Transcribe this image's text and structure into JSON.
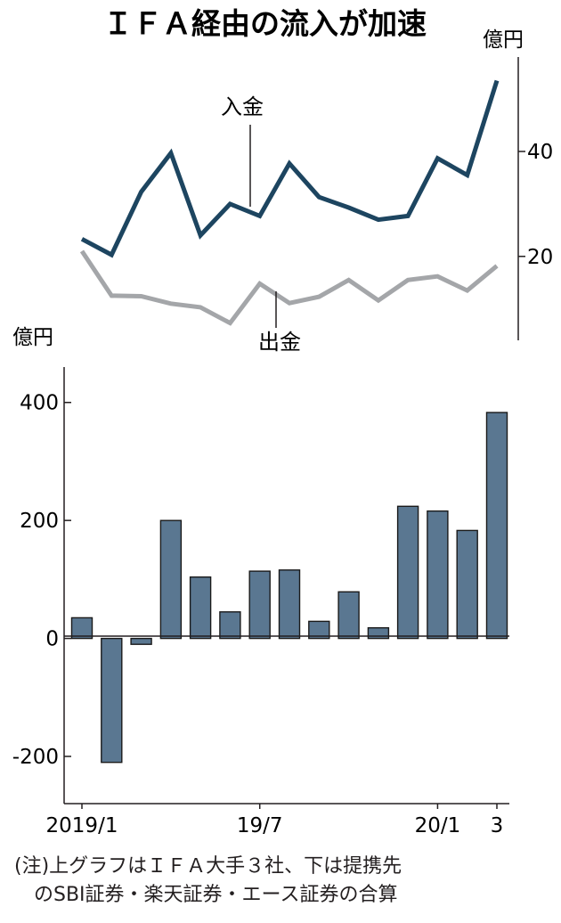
{
  "title": "ＩＦＡ経由の流入が加速",
  "note_line1": "(注)上グラフはＩＦＡ大手３社、下は提携先",
  "note_line2": "のSBI証券・楽天証券・エース証券の合算",
  "chart_data": [
    {
      "type": "line",
      "unit": "億円",
      "y_ticks": [
        20,
        40
      ],
      "ylim": [
        4,
        58
      ],
      "x_count": 15,
      "series": [
        {
          "name": "入金",
          "color": "#1d4560",
          "values": [
            23.3,
            20.3,
            32.3,
            39.7,
            24.0,
            30.0,
            27.7,
            37.7,
            31.3,
            29.3,
            27.0,
            27.7,
            38.7,
            35.5,
            53.5
          ]
        },
        {
          "name": "出金",
          "color": "#a4a6a9",
          "values": [
            21.0,
            12.5,
            12.4,
            11.0,
            10.3,
            7.3,
            14.8,
            11.1,
            12.3,
            15.5,
            11.6,
            15.5,
            16.2,
            13.5,
            18.2
          ]
        }
      ]
    },
    {
      "type": "bar",
      "unit": "億円",
      "bar_color": "#5a7791",
      "y_ticks": [
        400,
        200,
        0,
        -200
      ],
      "ylim": [
        -280,
        460
      ],
      "x_tick_labels": [
        {
          "index": 0,
          "label": "2019/1"
        },
        {
          "index": 6,
          "label": "19/7"
        },
        {
          "index": 12,
          "label": "20/1"
        },
        {
          "index": 14,
          "label": "3"
        }
      ],
      "values": [
        35,
        -210,
        -10,
        200,
        104,
        45,
        114,
        116,
        29,
        79,
        18,
        224,
        216,
        183,
        383
      ]
    }
  ]
}
